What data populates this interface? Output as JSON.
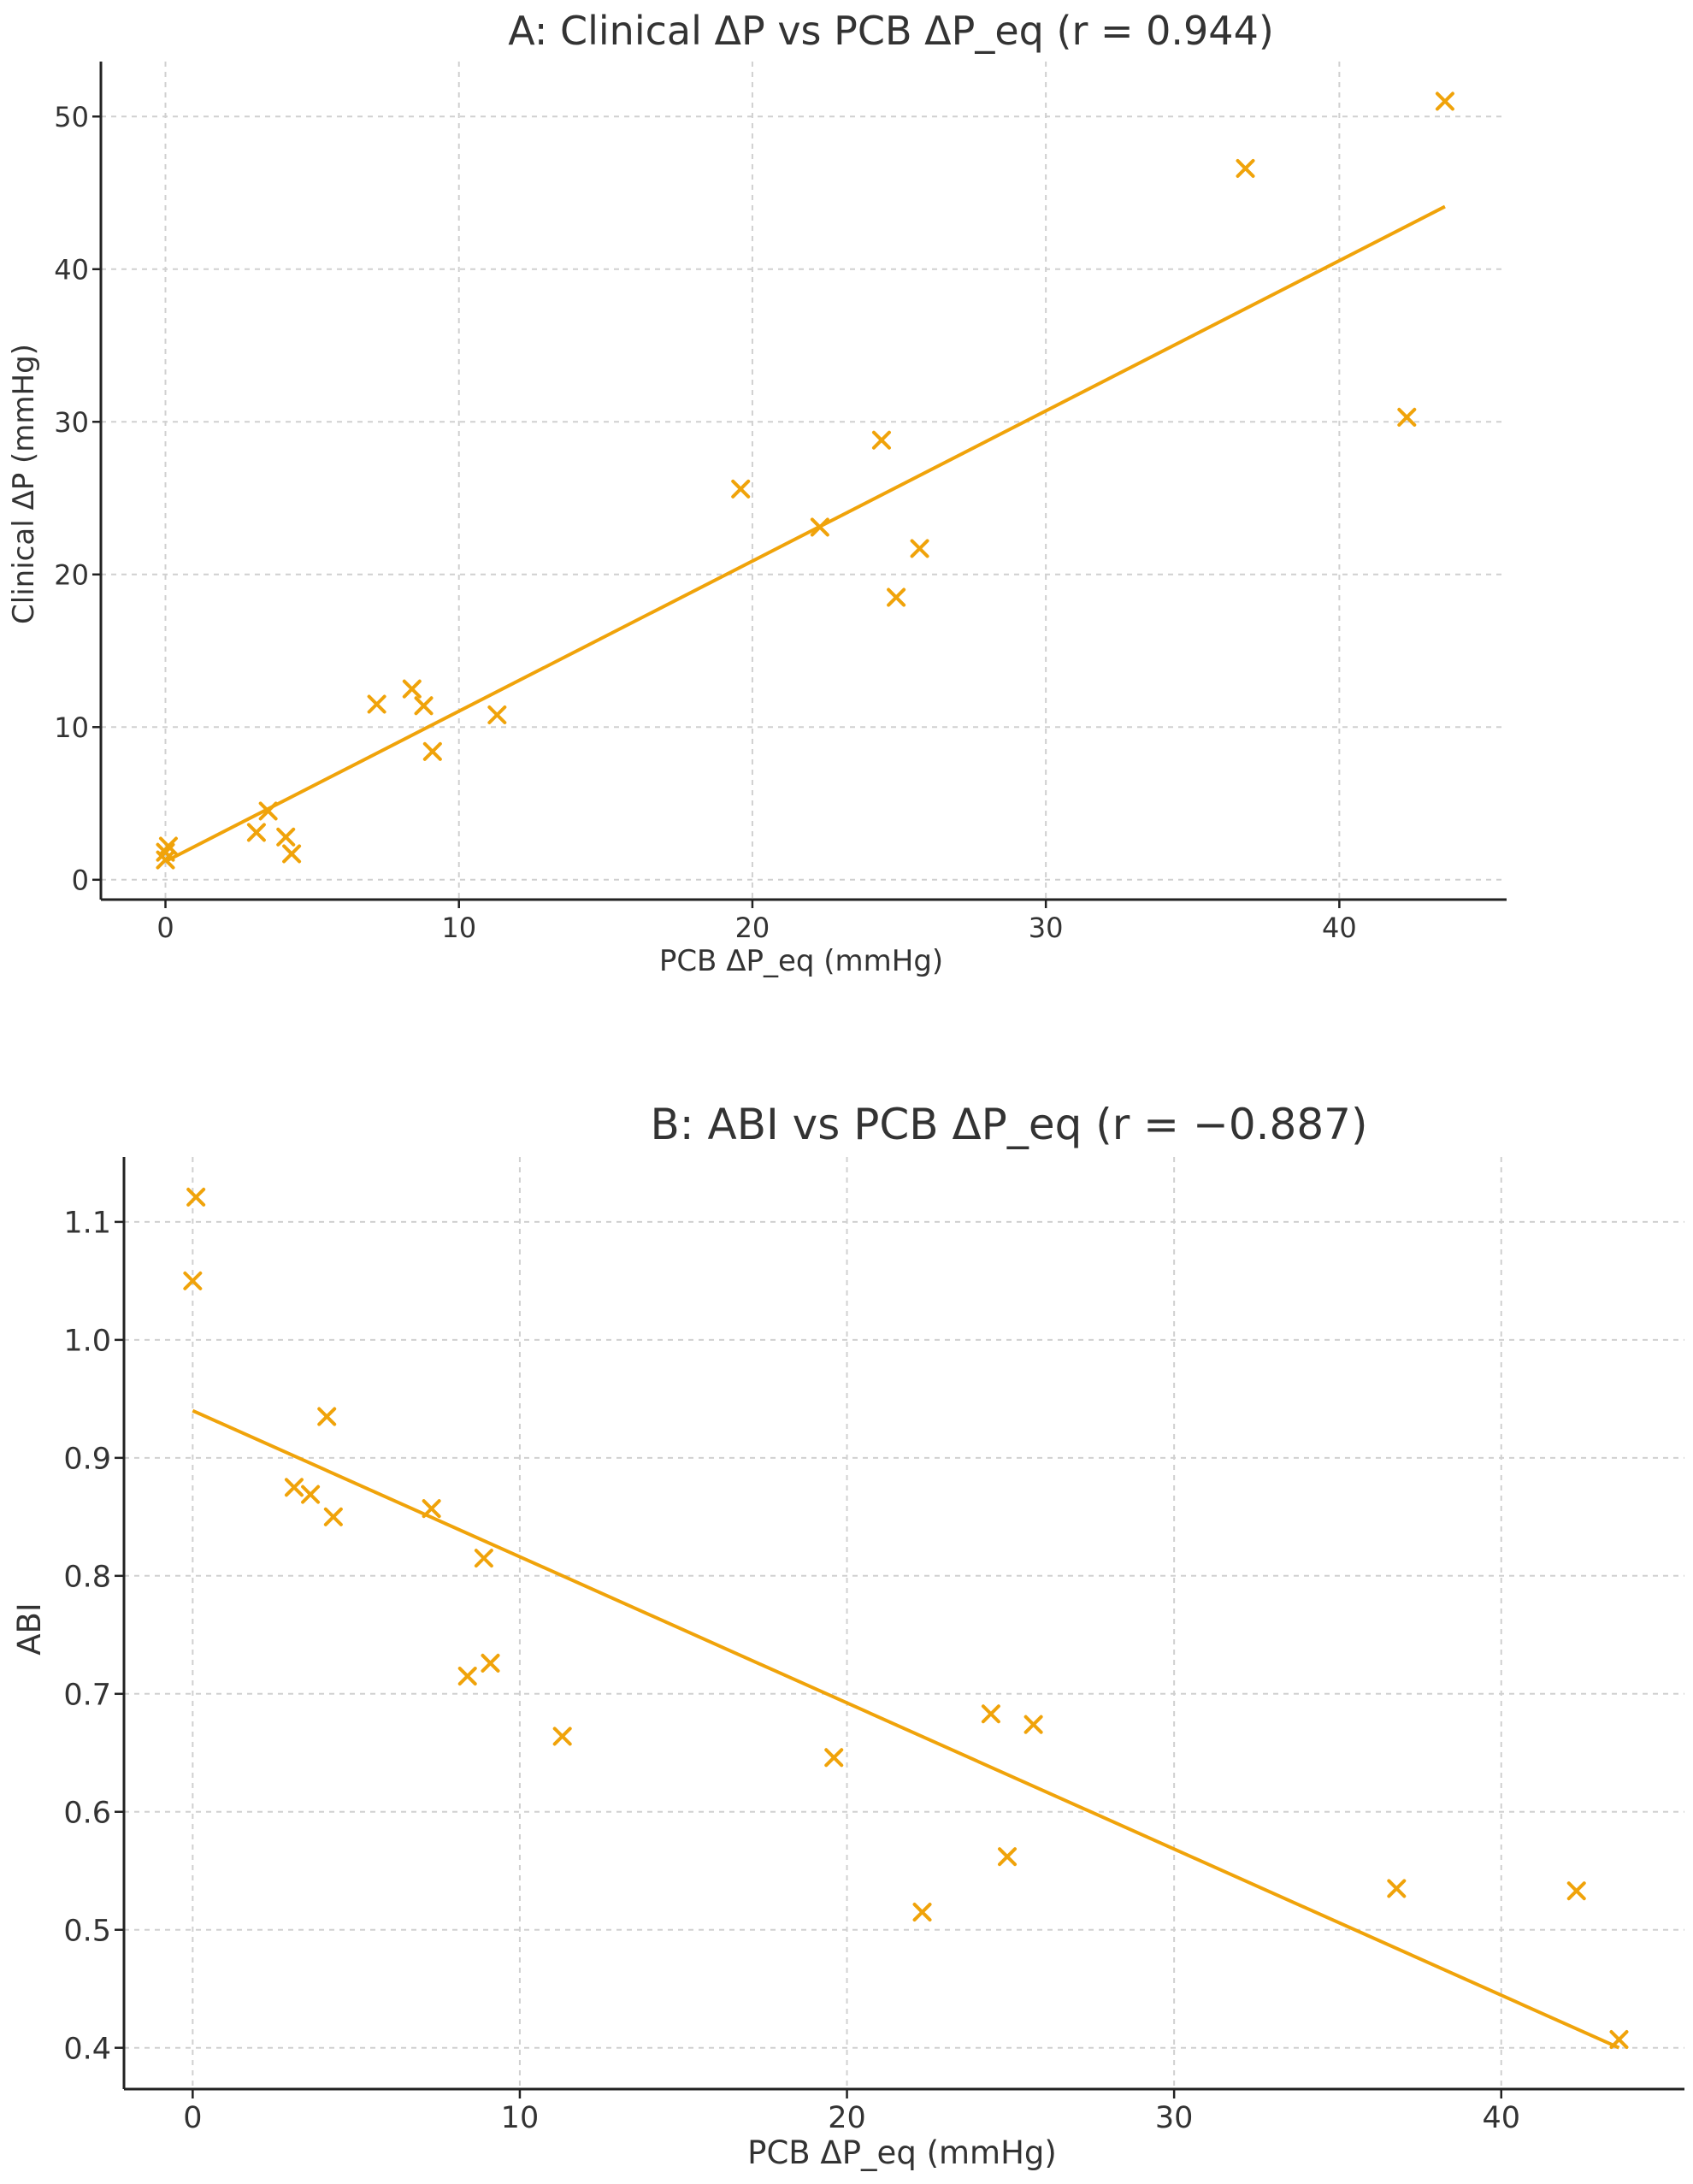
{
  "colors": {
    "series": "#f0a30a",
    "axis": "#222222",
    "grid": "#d0d0d0"
  },
  "marker": "x",
  "chart_data": [
    {
      "type": "scatter",
      "title": "A: Clinical ΔP vs PCB ΔP_eq (r = 0.944)",
      "xlabel": "PCB ΔP_eq (mmHg)",
      "ylabel": "Clinical ΔP (mmHg)",
      "xlim": [
        -2.2,
        45.7
      ],
      "ylim": [
        -1.3,
        53.6
      ],
      "xticks": [
        0,
        10,
        20,
        30,
        40
      ],
      "yticks": [
        0,
        10,
        20,
        30,
        40,
        50
      ],
      "xtick_labels": [
        "0",
        "10",
        "20",
        "30",
        "40"
      ],
      "ytick_labels": [
        "0",
        "10",
        "20",
        "30",
        "40",
        "50"
      ],
      "grid": true,
      "points": [
        {
          "x": 0.0,
          "y": 1.3
        },
        {
          "x": 0.0,
          "y": 1.8
        },
        {
          "x": 0.1,
          "y": 2.2
        },
        {
          "x": 3.1,
          "y": 3.1
        },
        {
          "x": 3.5,
          "y": 4.5
        },
        {
          "x": 4.1,
          "y": 2.8
        },
        {
          "x": 4.3,
          "y": 1.7
        },
        {
          "x": 7.2,
          "y": 11.5
        },
        {
          "x": 8.4,
          "y": 12.5
        },
        {
          "x": 8.8,
          "y": 11.4
        },
        {
          "x": 9.1,
          "y": 8.4
        },
        {
          "x": 11.3,
          "y": 10.8
        },
        {
          "x": 19.6,
          "y": 25.6
        },
        {
          "x": 22.3,
          "y": 23.1
        },
        {
          "x": 24.4,
          "y": 28.8
        },
        {
          "x": 24.9,
          "y": 18.5
        },
        {
          "x": 25.7,
          "y": 21.7
        },
        {
          "x": 36.8,
          "y": 46.6
        },
        {
          "x": 42.3,
          "y": 30.3
        },
        {
          "x": 43.6,
          "y": 51.0
        }
      ],
      "fit_line": {
        "x": [
          0,
          43.6
        ],
        "y": [
          1.2,
          44.1
        ]
      }
    },
    {
      "type": "scatter",
      "title": "B: ABI vs PCB ΔP_eq (r = −0.887)",
      "xlabel": "PCB ΔP_eq (mmHg)",
      "ylabel": "ABI",
      "xlim": [
        -2.1,
        45.6
      ],
      "ylim": [
        0.365,
        1.155
      ],
      "xticks": [
        0,
        10,
        20,
        30,
        40
      ],
      "yticks": [
        0.4,
        0.5,
        0.6,
        0.7,
        0.8,
        0.9,
        1.0,
        1.1
      ],
      "xtick_labels": [
        "0",
        "10",
        "20",
        "30",
        "40"
      ],
      "ytick_labels": [
        "0.4",
        "0.5",
        "0.6",
        "0.7",
        "0.8",
        "0.9",
        "1.0",
        "1.1"
      ],
      "grid": true,
      "points": [
        {
          "x": 0.1,
          "y": 1.121
        },
        {
          "x": 0.0,
          "y": 1.05
        },
        {
          "x": 4.1,
          "y": 0.935
        },
        {
          "x": 3.1,
          "y": 0.875
        },
        {
          "x": 3.6,
          "y": 0.869
        },
        {
          "x": 4.3,
          "y": 0.85
        },
        {
          "x": 7.3,
          "y": 0.857
        },
        {
          "x": 8.9,
          "y": 0.815
        },
        {
          "x": 8.4,
          "y": 0.715
        },
        {
          "x": 9.1,
          "y": 0.726
        },
        {
          "x": 11.3,
          "y": 0.664
        },
        {
          "x": 19.6,
          "y": 0.646
        },
        {
          "x": 22.3,
          "y": 0.515
        },
        {
          "x": 24.4,
          "y": 0.683
        },
        {
          "x": 24.9,
          "y": 0.562
        },
        {
          "x": 25.7,
          "y": 0.674
        },
        {
          "x": 36.8,
          "y": 0.535
        },
        {
          "x": 42.3,
          "y": 0.533
        },
        {
          "x": 43.6,
          "y": 0.407
        }
      ],
      "fit_line": {
        "x": [
          0,
          43.6
        ],
        "y": [
          0.94,
          0.4
        ]
      }
    }
  ]
}
